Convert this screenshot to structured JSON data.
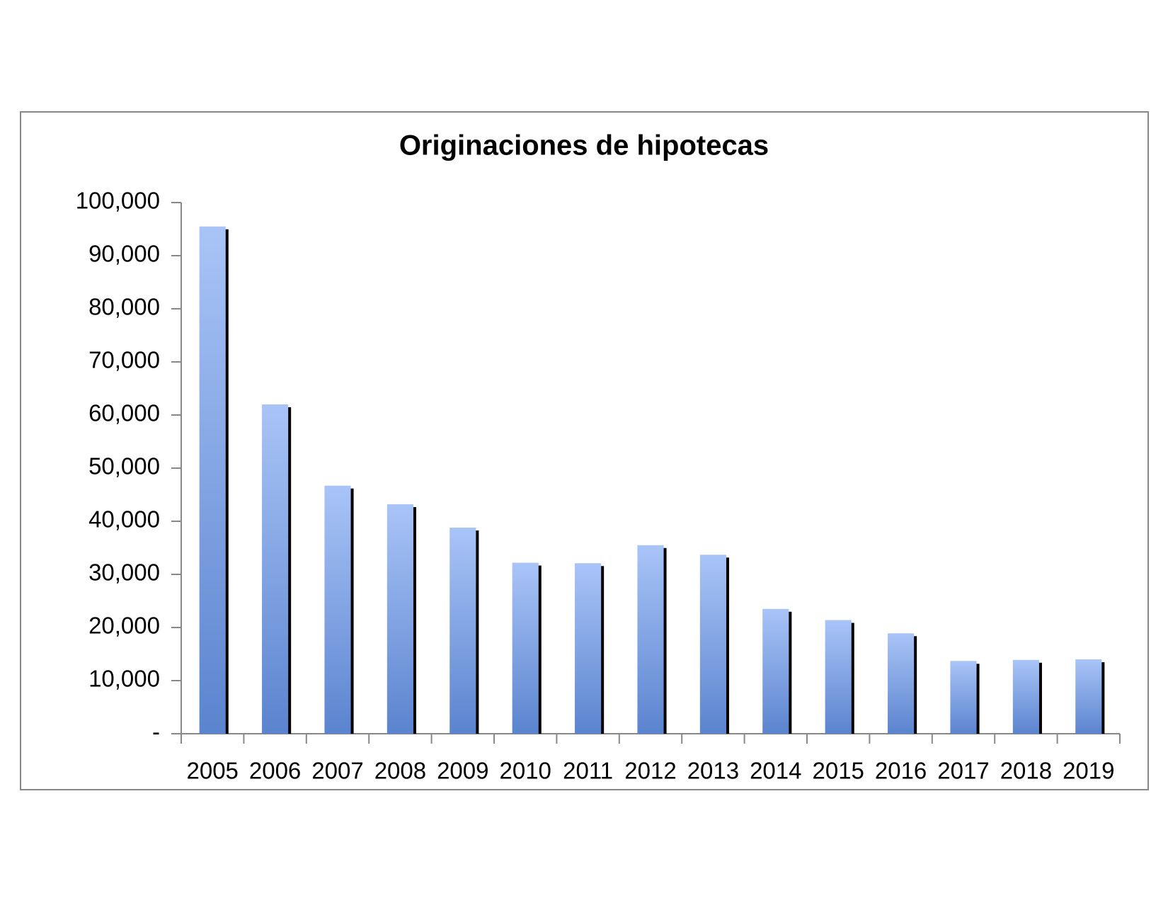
{
  "chart_data": {
    "type": "bar",
    "title": "Originaciones de hipotecas",
    "categories": [
      "2005",
      "2006",
      "2007",
      "2008",
      "2009",
      "2010",
      "2011",
      "2012",
      "2013",
      "2014",
      "2015",
      "2016",
      "2017",
      "2018",
      "2019"
    ],
    "values": [
      95500,
      62000,
      46700,
      43200,
      38800,
      32200,
      32100,
      35500,
      33700,
      23500,
      21400,
      18900,
      13700,
      13900,
      14000
    ],
    "color": "#a9c4f7",
    "ylim": [
      0,
      100000
    ],
    "yticks": [
      {
        "value": 0,
        "label": "-"
      },
      {
        "value": 10000,
        "label": "10,000"
      },
      {
        "value": 20000,
        "label": "20,000"
      },
      {
        "value": 30000,
        "label": "30,000"
      },
      {
        "value": 40000,
        "label": "40,000"
      },
      {
        "value": 50000,
        "label": "50,000"
      },
      {
        "value": 60000,
        "label": "60,000"
      },
      {
        "value": 70000,
        "label": "70,000"
      },
      {
        "value": 80000,
        "label": "80,000"
      },
      {
        "value": 90000,
        "label": "90,000"
      },
      {
        "value": 100000,
        "label": "100,000"
      }
    ],
    "grid": false
  }
}
